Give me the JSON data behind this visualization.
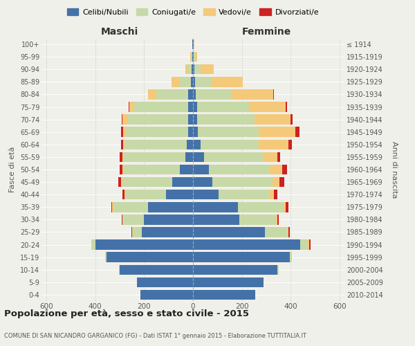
{
  "age_groups": [
    "0-4",
    "5-9",
    "10-14",
    "15-19",
    "20-24",
    "25-29",
    "30-34",
    "35-39",
    "40-44",
    "45-49",
    "50-54",
    "55-59",
    "60-64",
    "65-69",
    "70-74",
    "75-79",
    "80-84",
    "85-89",
    "90-94",
    "95-99",
    "100+"
  ],
  "birth_years": [
    "2010-2014",
    "2005-2009",
    "2000-2004",
    "1995-1999",
    "1990-1994",
    "1985-1989",
    "1980-1984",
    "1975-1979",
    "1970-1974",
    "1965-1969",
    "1960-1964",
    "1955-1959",
    "1950-1954",
    "1945-1949",
    "1940-1944",
    "1935-1939",
    "1930-1934",
    "1925-1929",
    "1920-1924",
    "1915-1919",
    "≤ 1914"
  ],
  "males": {
    "celibi": [
      215,
      230,
      300,
      355,
      400,
      210,
      200,
      185,
      110,
      85,
      55,
      30,
      25,
      20,
      20,
      20,
      20,
      8,
      5,
      3,
      2
    ],
    "coniugati": [
      0,
      0,
      2,
      5,
      15,
      40,
      90,
      140,
      165,
      205,
      230,
      255,
      255,
      255,
      250,
      220,
      130,
      45,
      15,
      5,
      2
    ],
    "vedovi": [
      0,
      0,
      0,
      0,
      2,
      0,
      0,
      5,
      5,
      5,
      5,
      5,
      5,
      12,
      18,
      20,
      35,
      35,
      10,
      2,
      0
    ],
    "divorziati": [
      0,
      0,
      0,
      0,
      0,
      2,
      2,
      5,
      10,
      12,
      10,
      10,
      10,
      8,
      5,
      2,
      0,
      0,
      0,
      0,
      0
    ]
  },
  "females": {
    "nubili": [
      255,
      290,
      345,
      395,
      440,
      295,
      190,
      185,
      105,
      80,
      65,
      45,
      30,
      20,
      18,
      18,
      12,
      8,
      5,
      3,
      2
    ],
    "coniugate": [
      0,
      0,
      5,
      10,
      30,
      90,
      150,
      185,
      210,
      245,
      250,
      240,
      240,
      250,
      235,
      210,
      145,
      65,
      25,
      5,
      2
    ],
    "vedove": [
      0,
      0,
      0,
      0,
      5,
      5,
      5,
      10,
      15,
      30,
      50,
      60,
      120,
      150,
      145,
      150,
      170,
      130,
      55,
      8,
      2
    ],
    "divorziate": [
      0,
      0,
      0,
      0,
      5,
      5,
      5,
      10,
      15,
      20,
      20,
      12,
      15,
      15,
      10,
      8,
      5,
      0,
      0,
      0,
      0
    ]
  },
  "colors": {
    "celibi": "#4472a8",
    "coniugati": "#c8d9a8",
    "vedovi": "#f5c97a",
    "divorziati": "#cc2222"
  },
  "title": "Popolazione per età, sesso e stato civile - 2015",
  "subtitle": "COMUNE DI SAN NICANDRO GARGANICO (FG) - Dati ISTAT 1° gennaio 2015 - Elaborazione TUTTITALIA.IT",
  "xlabel_left": "Maschi",
  "xlabel_right": "Femmine",
  "ylabel_left": "Fasce di età",
  "ylabel_right": "Anni di nascita",
  "xlim": 620,
  "bg_color": "#f0f0eb",
  "legend_labels": [
    "Celibi/Nubili",
    "Coniugati/e",
    "Vedovi/e",
    "Divorziati/e"
  ]
}
